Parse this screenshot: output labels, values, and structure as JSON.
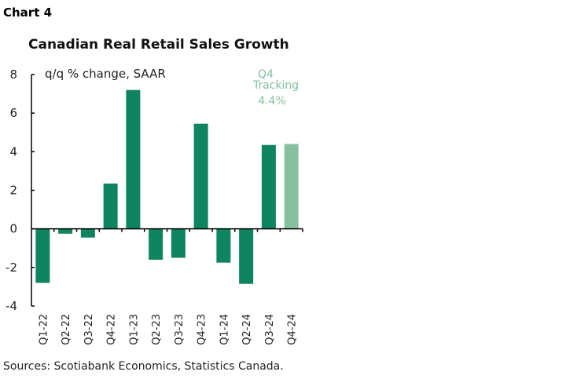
{
  "chart_label": "Chart 4",
  "source": "Sources: Scotiabank Economics, Statistics Canada.",
  "chart_data": {
    "type": "bar",
    "title": "Canadian Real Retail Sales Growth",
    "ylabel": "q/q % change, SAAR",
    "xlabel": "",
    "categories": [
      "Q1-22",
      "Q2-22",
      "Q3-22",
      "Q4-22",
      "Q1-23",
      "Q2-23",
      "Q3-23",
      "Q4-23",
      "Q1-24",
      "Q2-24",
      "Q3-24",
      "Q4-24"
    ],
    "values": [
      -2.8,
      -0.25,
      -0.45,
      2.35,
      7.2,
      -1.6,
      -1.5,
      5.45,
      -1.75,
      -2.85,
      4.35,
      4.4
    ],
    "ylim": [
      -4,
      8
    ],
    "yticks": [
      -4,
      -2,
      0,
      2,
      4,
      6,
      8
    ],
    "grid": false,
    "colors": {
      "actual": "#0e8560",
      "tracking": "#86c09f"
    },
    "highlight_index": 11,
    "annotation": [
      "Q4",
      "Tracking",
      "4.4%"
    ]
  }
}
